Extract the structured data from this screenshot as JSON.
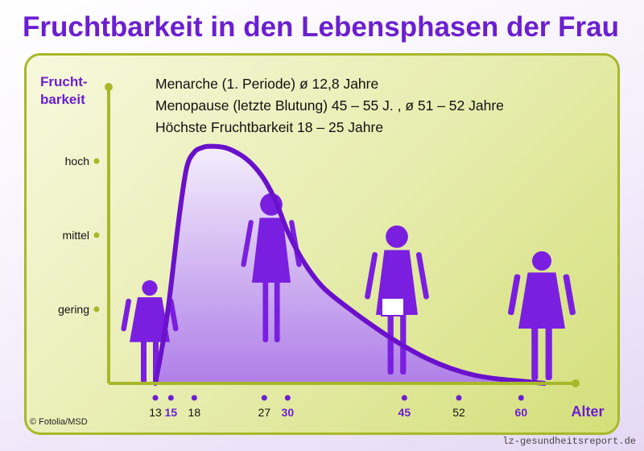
{
  "title": "Fruchtbarkeit in den Lebensphasen der Frau",
  "info_lines": [
    "Menarche (1. Periode) ø 12,8 Jahre",
    "Menopause (letzte Blutung) 45 – 55 J. , ø 51 – 52 Jahre",
    "Höchste Fruchtbarkeit 18 – 25 Jahre"
  ],
  "copyright": "© Fotolia/MSD",
  "watermark": "lz-gesundheitsreport.de",
  "colors": {
    "title": "#6b1fd0",
    "curve": "#6a11cb",
    "fill_top": "#f4eefc",
    "fill_bottom": "#b07fe8",
    "axis": "#a8b82a",
    "silhouette": "#7a1fe0",
    "highlight_tick": "#6b1fd0",
    "normal_tick": "#111111"
  },
  "chart_data": {
    "type": "area",
    "title": "Fruchtbarkeit in den Lebensphasen der Frau",
    "ylabel": "Frucht-\nbarkeit",
    "xlabel": "Alter",
    "y_levels": [
      {
        "label": "gering",
        "value": 1
      },
      {
        "label": "mittel",
        "value": 2
      },
      {
        "label": "hoch",
        "value": 3
      }
    ],
    "ylim": [
      0,
      4
    ],
    "xlim": [
      7,
      67
    ],
    "x_ticks": [
      {
        "label": "13",
        "value": 13,
        "highlight": false
      },
      {
        "label": "15",
        "value": 15,
        "highlight": true
      },
      {
        "label": "18",
        "value": 18,
        "highlight": false
      },
      {
        "label": "27",
        "value": 27,
        "highlight": false
      },
      {
        "label": "30",
        "value": 30,
        "highlight": true
      },
      {
        "label": "45",
        "value": 45,
        "highlight": true
      },
      {
        "label": "52",
        "value": 52,
        "highlight": false
      },
      {
        "label": "60",
        "value": 60,
        "highlight": true
      }
    ],
    "series": [
      {
        "x": [
          13,
          14.5,
          16,
          17,
          18,
          19,
          20,
          22,
          24,
          25.5,
          27,
          28.5,
          30,
          32,
          34.5,
          38,
          42,
          45,
          48,
          51,
          54,
          57,
          60,
          63
        ],
        "y": [
          0,
          0.9,
          2.2,
          2.9,
          3.12,
          3.18,
          3.2,
          3.18,
          3.08,
          2.95,
          2.75,
          2.45,
          2.05,
          1.65,
          1.3,
          1.0,
          0.7,
          0.5,
          0.33,
          0.2,
          0.11,
          0.06,
          0.03,
          0.0
        ]
      }
    ],
    "grid": false,
    "legend": "none"
  }
}
